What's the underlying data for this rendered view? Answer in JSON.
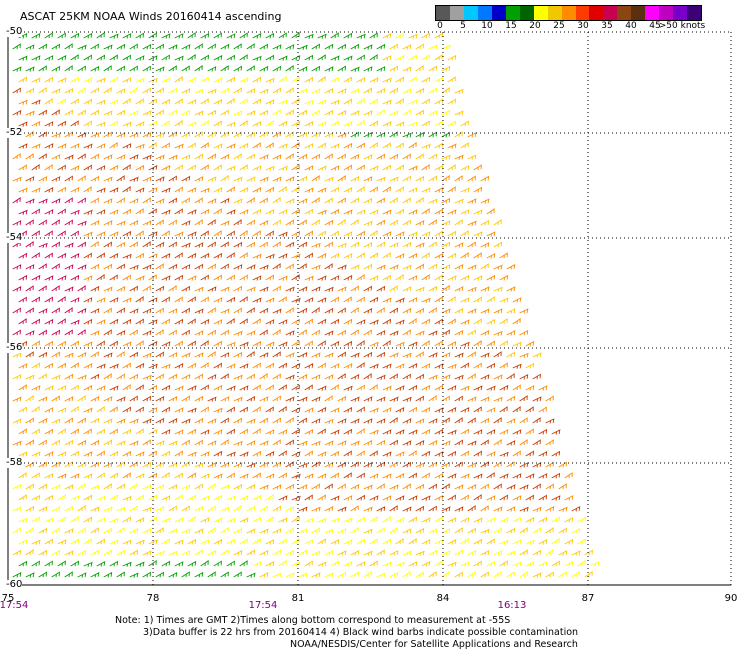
{
  "title": "ASCAT 25KM NOAA Winds 20160414 ascending",
  "legend": {
    "colors": [
      "#585858",
      "#a0a0a0",
      "#00c8ff",
      "#0078ff",
      "#0000c8",
      "#00a000",
      "#006400",
      "#ffff00",
      "#f0c800",
      "#ff8c00",
      "#ff3c00",
      "#e00000",
      "#c80050",
      "#8b4513",
      "#5a3010",
      "#ff00ff",
      "#c000c0",
      "#7800c8",
      "#3c0078"
    ],
    "labels": [
      "0",
      "5",
      "10",
      "15",
      "20",
      "25",
      "30",
      "35",
      "40",
      "45",
      ">50 knots"
    ]
  },
  "map": {
    "lon_ticks": [
      "75",
      "78",
      "81",
      "84",
      "87",
      "90"
    ],
    "lat_ticks": [
      "-50",
      "-52",
      "-54",
      "-56",
      "-58",
      "-60"
    ],
    "time_labels": [
      "17:54",
      "17:54",
      "16:13"
    ]
  },
  "notes": {
    "line1": "Note: 1) Times are GMT 2)Times along bottom correspond to measurement at -55S",
    "line2": "3)Data buffer is 22 hrs from 20160414 4) Black wind barbs indicate possible contamination",
    "line3": "NOAA/NESDIS/Center for Satellite Applications and Research"
  },
  "colors": {
    "speed_calm": "#ffff00",
    "speed_moderate": "#ffc800",
    "speed_fresh": "#ff8c00",
    "speed_strong": "#c83c00",
    "speed_gale": "#c80050",
    "speed_low": "#00a000",
    "grid": "#000000",
    "time_text": "#800080"
  }
}
